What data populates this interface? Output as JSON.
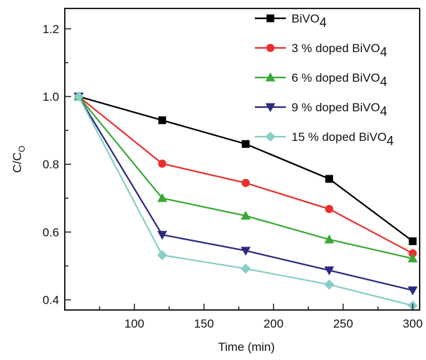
{
  "chart_data": {
    "type": "line",
    "xlabel": "Time (min)",
    "ylabel": "C/C",
    "ylabel_sub": "O",
    "xlim": [
      50,
      305
    ],
    "ylim": [
      0.37,
      1.26
    ],
    "x_ticks": [
      100,
      150,
      200,
      250,
      300
    ],
    "x_tick_labels": [
      "100",
      "150",
      "200",
      "250",
      "300"
    ],
    "x_minor_step": 25,
    "y_ticks": [
      0.4,
      0.6,
      0.8,
      1.0,
      1.2
    ],
    "y_tick_labels": [
      "0.4",
      "0.6",
      "0.8",
      "1.0",
      "1.2"
    ],
    "y_minor_step": 0.1,
    "grid": false,
    "legend_position": "top-right",
    "x": [
      60,
      120,
      180,
      240,
      300
    ],
    "series": [
      {
        "name_main": "BiVO",
        "name_sub": "4",
        "color": "#000000",
        "marker": "square",
        "values": [
          1.0,
          0.93,
          0.86,
          0.757,
          0.573
        ]
      },
      {
        "name_main": "3 % doped BiVO",
        "name_sub": "4",
        "color": "#e8312f",
        "marker": "circle",
        "values": [
          1.0,
          0.802,
          0.745,
          0.668,
          0.537
        ]
      },
      {
        "name_main": "6 % doped BiVO",
        "name_sub": "4",
        "color": "#3aa935",
        "marker": "triangle-up",
        "values": [
          1.0,
          0.7,
          0.648,
          0.578,
          0.522
        ]
      },
      {
        "name_main": "9 % doped BiVO",
        "name_sub": "4",
        "color": "#2b2a7f",
        "marker": "triangle-down",
        "values": [
          1.0,
          0.592,
          0.545,
          0.487,
          0.428
        ]
      },
      {
        "name_main": "15 % doped BiVO",
        "name_sub": "4",
        "color": "#86cfc6",
        "marker": "diamond",
        "values": [
          1.0,
          0.532,
          0.492,
          0.445,
          0.383
        ]
      }
    ]
  }
}
